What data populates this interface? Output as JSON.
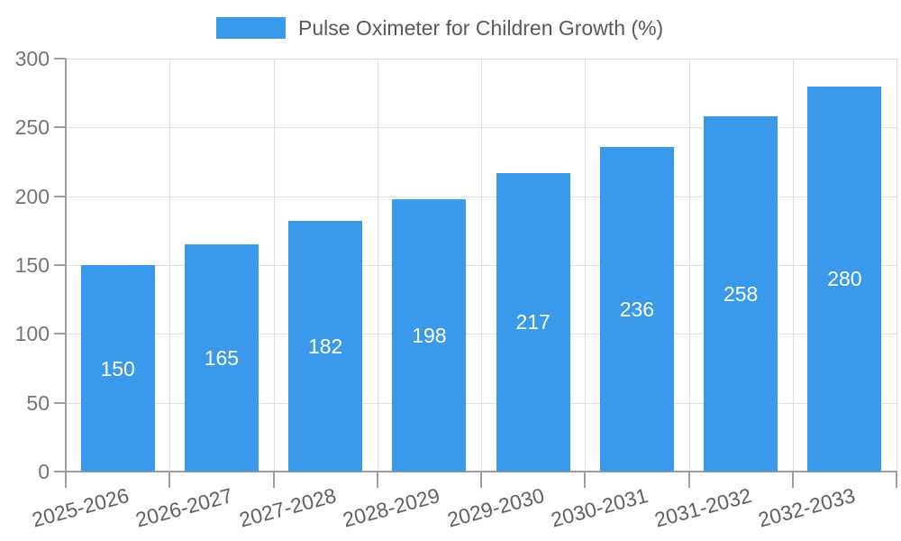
{
  "legend": {
    "label": "Pulse Oximeter for Children Growth (%)"
  },
  "chart_data": {
    "type": "bar",
    "title": "Pulse Oximeter for Children Growth (%)",
    "categories": [
      "2025-2026",
      "2026-2027",
      "2027-2028",
      "2028-2029",
      "2029-2030",
      "2030-2031",
      "2031-2032",
      "2032-2033"
    ],
    "values": [
      150,
      165,
      182,
      198,
      217,
      236,
      258,
      280
    ],
    "xlabel": "",
    "ylabel": "",
    "ylim": [
      0,
      300
    ],
    "yticks": [
      0,
      50,
      100,
      150,
      200,
      250,
      300
    ],
    "grid": true,
    "legend_position": "top-center",
    "colors": {
      "bar": "#3B99EC",
      "gridline": "#E0E0E0",
      "axis": "#9E9E9E",
      "ytick_label": "#757575",
      "xtick_label": "#616161",
      "value_label": "#FFFFFF",
      "legend_text": "#58595B"
    }
  }
}
